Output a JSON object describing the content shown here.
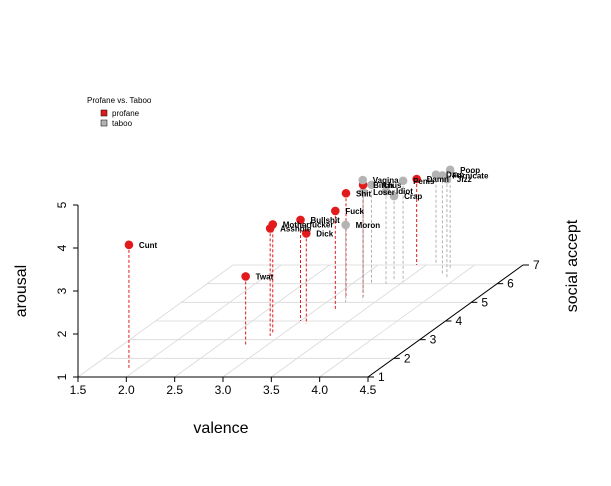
{
  "chart_data": {
    "type": "scatter",
    "subtype": "scatter3d",
    "title": "",
    "xlabel": "valence",
    "ylabel": "social accept",
    "zlabel": "arousal",
    "xlim": [
      1.5,
      4.5
    ],
    "ylim": [
      1,
      7
    ],
    "zlim": [
      1,
      5
    ],
    "x_ticks": [
      "1.5",
      "2.0",
      "2.5",
      "3.0",
      "3.5",
      "4.0",
      "4.5"
    ],
    "y_ticks": [
      "1",
      "2",
      "3",
      "4",
      "5",
      "6",
      "7"
    ],
    "z_ticks": [
      "1",
      "2",
      "3",
      "4",
      "5"
    ],
    "grid": true,
    "legend": {
      "title": "Profane vs. Taboo",
      "position": "top-left",
      "entries": [
        {
          "name": "profane",
          "color": "#e31a1c"
        },
        {
          "name": "taboo",
          "color": "#b3b3b3"
        }
      ]
    },
    "series": [
      {
        "name": "profane",
        "color": "#e31a1c",
        "points": [
          {
            "label": "Cunt",
            "x": 1.92,
            "y": 1.4,
            "z": 3.9
          },
          {
            "label": "Bitch",
            "x": 3.3,
            "y": 5.3,
            "z": 3.6
          },
          {
            "label": "Motherfucker",
            "x": 2.9,
            "y": 3.3,
            "z": 3.55
          },
          {
            "label": "Asshole",
            "x": 2.9,
            "y": 3.2,
            "z": 3.5
          },
          {
            "label": "Shit",
            "x": 3.15,
            "y": 5.2,
            "z": 3.45
          },
          {
            "label": "Bullshit",
            "x": 3.0,
            "y": 4.0,
            "z": 3.35
          },
          {
            "label": "Fuck",
            "x": 3.2,
            "y": 4.6,
            "z": 3.3
          },
          {
            "label": "Dick",
            "x": 3.1,
            "y": 3.85,
            "z": 3.1
          },
          {
            "label": "Twat",
            "x": 2.78,
            "y": 2.7,
            "z": 2.6
          },
          {
            "label": "Damn",
            "x": 3.4,
            "y": 7.0,
            "z": 3.0
          }
        ]
      },
      {
        "name": "taboo",
        "color": "#b3b3b3",
        "points": [
          {
            "label": "Vagina",
            "x": 3.35,
            "y": 5.1,
            "z": 3.8
          },
          {
            "label": "Loser",
            "x": 3.22,
            "y": 5.6,
            "z": 3.3
          },
          {
            "label": "Anus",
            "x": 3.2,
            "y": 6.0,
            "z": 3.3
          },
          {
            "label": "Penis",
            "x": 3.5,
            "y": 6.1,
            "z": 3.35
          },
          {
            "label": "Idiot",
            "x": 3.35,
            "y": 6.0,
            "z": 3.15
          },
          {
            "label": "Fornicate",
            "x": 3.8,
            "y": 6.5,
            "z": 3.3
          },
          {
            "label": "Jizz",
            "x": 3.9,
            "y": 6.3,
            "z": 3.3
          },
          {
            "label": "Poop",
            "x": 3.8,
            "y": 6.8,
            "z": 3.3
          },
          {
            "label": "Darn",
            "x": 3.6,
            "y": 7.0,
            "z": 3.1
          },
          {
            "label": "Crap",
            "x": 3.38,
            "y": 6.2,
            "z": 2.95
          },
          {
            "label": "Moron",
            "x": 3.2,
            "y": 5.0,
            "z": 2.8
          }
        ]
      }
    ]
  }
}
